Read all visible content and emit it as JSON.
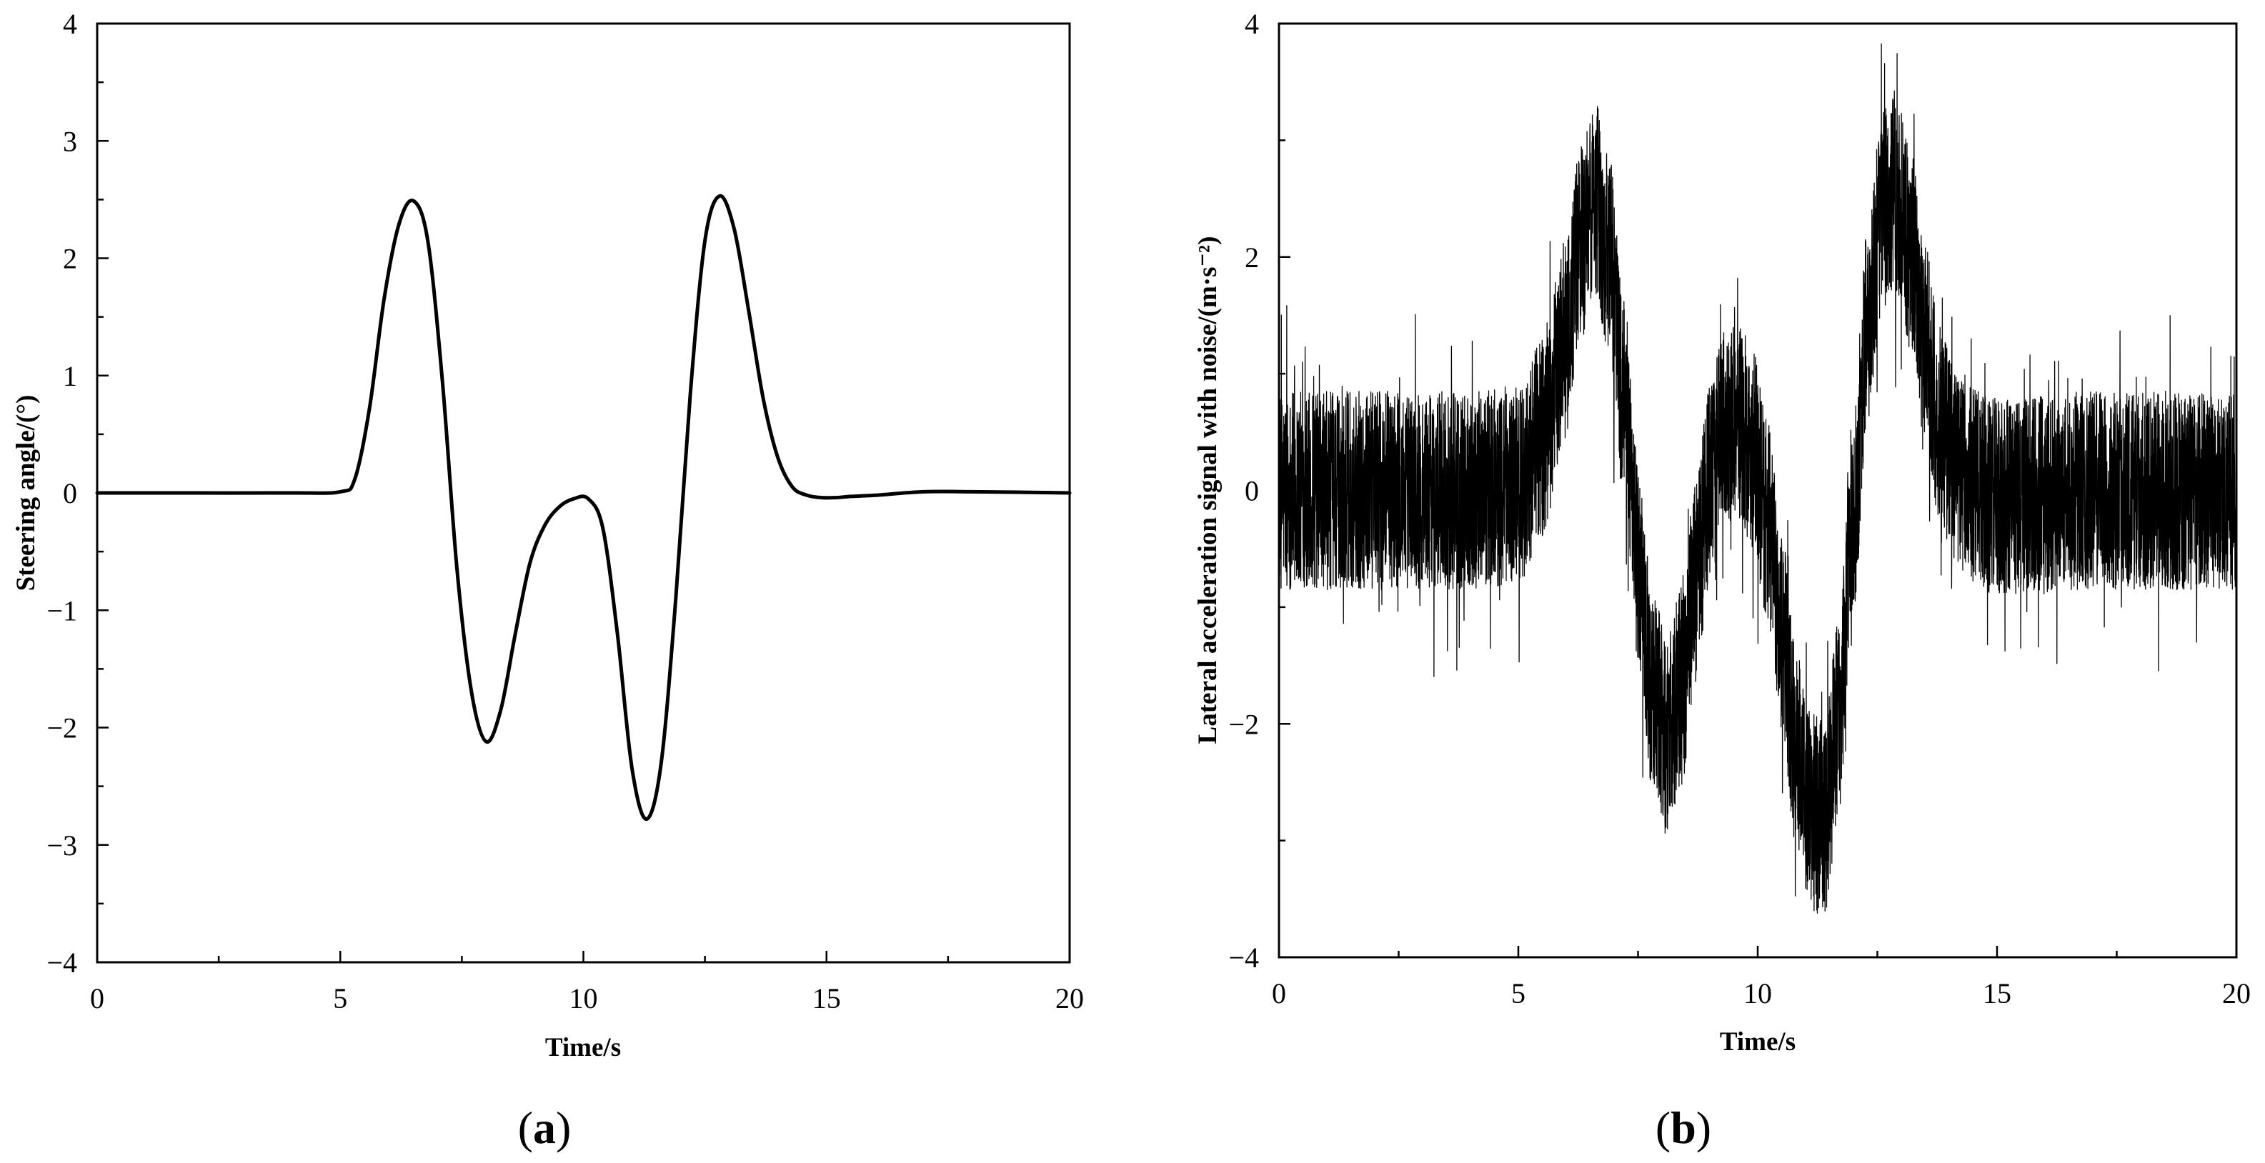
{
  "chart_data": [
    {
      "type": "line",
      "panel_label": "a",
      "xlabel": "Time/s",
      "ylabel": "Steering angle/(°)",
      "xlim": [
        0,
        20
      ],
      "ylim": [
        -4,
        4
      ],
      "xticks": [
        0,
        5,
        10,
        15,
        20
      ],
      "yticks": [
        -4,
        -3,
        -2,
        -1,
        0,
        1,
        2,
        3,
        4
      ],
      "xtick_labels": [
        "0",
        "5",
        "10",
        "15",
        "20"
      ],
      "ytick_labels": [
        "−4",
        "−3",
        "−2",
        "−1",
        "0",
        "1",
        "2",
        "3",
        "4"
      ],
      "grid": false,
      "series": [
        {
          "x": [
            0,
            2,
            4,
            5,
            5.3,
            5.6,
            5.9,
            6.2,
            6.5,
            6.8,
            7.1,
            7.4,
            7.7,
            8.0,
            8.3,
            8.6,
            8.9,
            9.2,
            9.5,
            9.8,
            10.1,
            10.4,
            10.7,
            11.0,
            11.3,
            11.6,
            11.9,
            12.2,
            12.5,
            12.8,
            13.1,
            13.4,
            13.7,
            14.0,
            14.3,
            14.6,
            14.9,
            15.2,
            15.5,
            16,
            17,
            18,
            20
          ],
          "y": [
            0,
            0,
            0,
            0.01,
            0.12,
            0.72,
            1.65,
            2.28,
            2.49,
            2.15,
            0.95,
            -0.65,
            -1.7,
            -2.12,
            -1.85,
            -1.2,
            -0.6,
            -0.28,
            -0.12,
            -0.05,
            -0.05,
            -0.3,
            -1.2,
            -2.35,
            -2.78,
            -2.3,
            -0.9,
            0.85,
            2.15,
            2.53,
            2.25,
            1.55,
            0.8,
            0.3,
            0.05,
            -0.02,
            -0.04,
            -0.04,
            -0.03,
            -0.02,
            0.01,
            0.01,
            0
          ]
        }
      ]
    },
    {
      "type": "line",
      "panel_label": "b",
      "xlabel": "Time/s",
      "ylabel": "Lateral acceleration signal with noise/(m·s⁻²)",
      "xlim": [
        0,
        20
      ],
      "ylim": [
        -4,
        4
      ],
      "xticks": [
        0,
        5,
        10,
        15,
        20
      ],
      "yticks": [
        -4,
        -2,
        0,
        2,
        4
      ],
      "xtick_labels": [
        "0",
        "5",
        "10",
        "15",
        "20"
      ],
      "ytick_labels": [
        "−4",
        "−2",
        "0",
        "2",
        "4"
      ],
      "grid": false,
      "series": [
        {
          "underlying_signal": {
            "x": [
              0,
              2,
              4,
              5,
              5.5,
              6.0,
              6.3,
              6.6,
              6.9,
              7.2,
              7.5,
              7.8,
              8.1,
              8.4,
              8.7,
              9.0,
              9.3,
              9.6,
              9.9,
              10.2,
              10.5,
              10.8,
              11.1,
              11.4,
              11.7,
              12.0,
              12.3,
              12.6,
              12.9,
              13.2,
              13.5,
              13.8,
              14.1,
              14.4,
              14.8,
              15.5,
              17,
              20
            ],
            "y": [
              0,
              0,
              0,
              0.05,
              0.45,
              1.3,
              2.1,
              2.5,
              2.0,
              0.8,
              -0.6,
              -1.7,
              -2.1,
              -1.7,
              -0.8,
              0.05,
              0.55,
              0.6,
              0.35,
              -0.25,
              -1.2,
              -2.2,
              -2.75,
              -2.8,
              -1.9,
              -0.2,
              1.4,
              2.4,
              2.55,
              2.05,
              1.25,
              0.6,
              0.25,
              0.05,
              -0.05,
              -0.05,
              0,
              0
            ]
          },
          "noise_amplitude": 0.85
        }
      ]
    }
  ]
}
